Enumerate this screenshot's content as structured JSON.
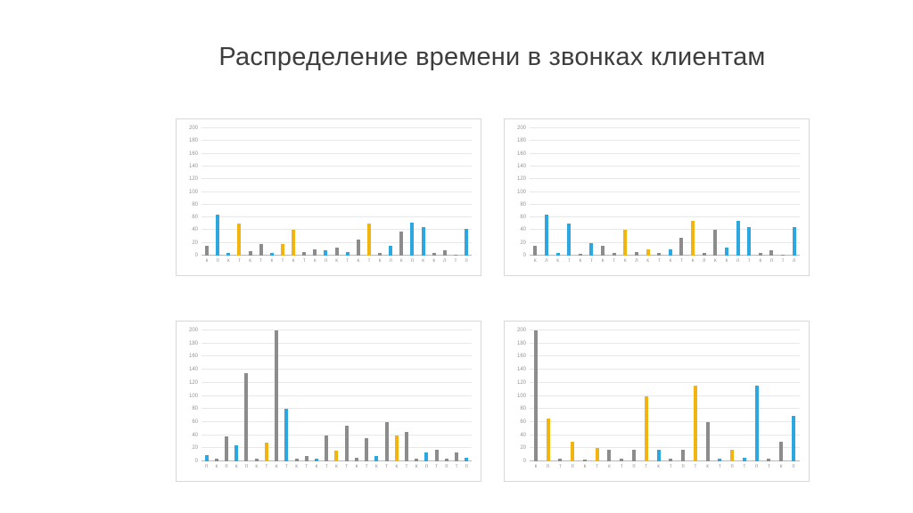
{
  "slide": {
    "title": "Распределение времени в звонках клиентам"
  },
  "palette": {
    "gray": "#8c8c8c",
    "blue": "#2da7e0",
    "yellow": "#f2b411"
  },
  "chart_data": [
    {
      "type": "bar",
      "title": "",
      "xlabel": "",
      "ylabel": "",
      "ylim": [
        0,
        200
      ],
      "yticks": [
        0,
        20,
        40,
        60,
        80,
        100,
        120,
        140,
        160,
        180,
        200
      ],
      "grid": true,
      "legend": false,
      "categories": [
        "к",
        "п",
        "к",
        "т",
        "к",
        "т",
        "к",
        "т",
        "к",
        "т",
        "к",
        "л",
        "к",
        "т",
        "к",
        "т",
        "к",
        "л",
        "к",
        "п",
        "к",
        "к",
        "л",
        "т",
        "п"
      ],
      "values": [
        15,
        65,
        4,
        50,
        7,
        18,
        4,
        18,
        40,
        6,
        10,
        8,
        12,
        6,
        25,
        50,
        4,
        15,
        38,
        52,
        45,
        4,
        8,
        2,
        42
      ],
      "colors": [
        "gray",
        "blue",
        "blue",
        "yellow",
        "gray",
        "gray",
        "blue",
        "yellow",
        "yellow",
        "gray",
        "gray",
        "blue",
        "gray",
        "blue",
        "gray",
        "yellow",
        "gray",
        "blue",
        "gray",
        "blue",
        "blue",
        "gray",
        "gray",
        "gray",
        "blue"
      ]
    },
    {
      "type": "bar",
      "title": "",
      "xlabel": "",
      "ylabel": "",
      "ylim": [
        0,
        200
      ],
      "yticks": [
        0,
        20,
        40,
        60,
        80,
        100,
        120,
        140,
        160,
        180,
        200
      ],
      "grid": true,
      "legend": false,
      "categories": [
        "к",
        "л",
        "к",
        "т",
        "к",
        "т",
        "к",
        "т",
        "к",
        "л",
        "к",
        "т",
        "к",
        "т",
        "к",
        "л",
        "к",
        "к",
        "л",
        "т",
        "к",
        "п",
        "т",
        "л"
      ],
      "values": [
        15,
        65,
        4,
        50,
        3,
        20,
        16,
        4,
        40,
        6,
        10,
        4,
        10,
        28,
        55,
        4,
        40,
        12,
        55,
        45,
        4,
        8,
        2,
        45
      ],
      "colors": [
        "gray",
        "blue",
        "blue",
        "blue",
        "gray",
        "blue",
        "gray",
        "gray",
        "yellow",
        "gray",
        "yellow",
        "gray",
        "blue",
        "gray",
        "yellow",
        "gray",
        "gray",
        "blue",
        "blue",
        "blue",
        "gray",
        "gray",
        "gray",
        "blue"
      ]
    },
    {
      "type": "bar",
      "title": "",
      "xlabel": "",
      "ylabel": "",
      "ylim": [
        0,
        200
      ],
      "yticks": [
        0,
        20,
        40,
        60,
        80,
        100,
        120,
        140,
        160,
        180,
        200
      ],
      "grid": true,
      "legend": false,
      "categories": [
        "п",
        "к",
        "п",
        "к",
        "п",
        "к",
        "т",
        "к",
        "т",
        "к",
        "т",
        "к",
        "т",
        "к",
        "т",
        "к",
        "т",
        "к",
        "т",
        "к",
        "т",
        "к",
        "п",
        "т",
        "п",
        "т",
        "п"
      ],
      "values": [
        10,
        4,
        38,
        25,
        135,
        4,
        28,
        200,
        80,
        4,
        8,
        4,
        40,
        16,
        55,
        6,
        35,
        8,
        60,
        40,
        45,
        4,
        14,
        18,
        4,
        14,
        6
      ],
      "colors": [
        "blue",
        "gray",
        "gray",
        "blue",
        "gray",
        "gray",
        "yellow",
        "gray",
        "blue",
        "gray",
        "gray",
        "blue",
        "gray",
        "yellow",
        "gray",
        "gray",
        "gray",
        "blue",
        "gray",
        "yellow",
        "gray",
        "gray",
        "blue",
        "gray",
        "gray",
        "gray",
        "blue"
      ]
    },
    {
      "type": "bar",
      "title": "",
      "xlabel": "",
      "ylabel": "",
      "ylim": [
        0,
        200
      ],
      "yticks": [
        0,
        20,
        40,
        60,
        80,
        100,
        120,
        140,
        160,
        180,
        200
      ],
      "grid": true,
      "legend": false,
      "categories": [
        "к",
        "п",
        "т",
        "п",
        "к",
        "т",
        "к",
        "т",
        "п",
        "т",
        "к",
        "т",
        "п",
        "т",
        "к",
        "т",
        "п",
        "т",
        "п",
        "т",
        "к",
        "п"
      ],
      "values": [
        200,
        65,
        4,
        30,
        3,
        20,
        18,
        4,
        18,
        100,
        18,
        4,
        18,
        115,
        60,
        4,
        18,
        6,
        115,
        4,
        30,
        70
      ],
      "colors": [
        "gray",
        "yellow",
        "gray",
        "yellow",
        "gray",
        "yellow",
        "gray",
        "gray",
        "gray",
        "yellow",
        "blue",
        "gray",
        "gray",
        "yellow",
        "gray",
        "blue",
        "yellow",
        "blue",
        "blue",
        "gray",
        "gray",
        "blue"
      ]
    }
  ]
}
